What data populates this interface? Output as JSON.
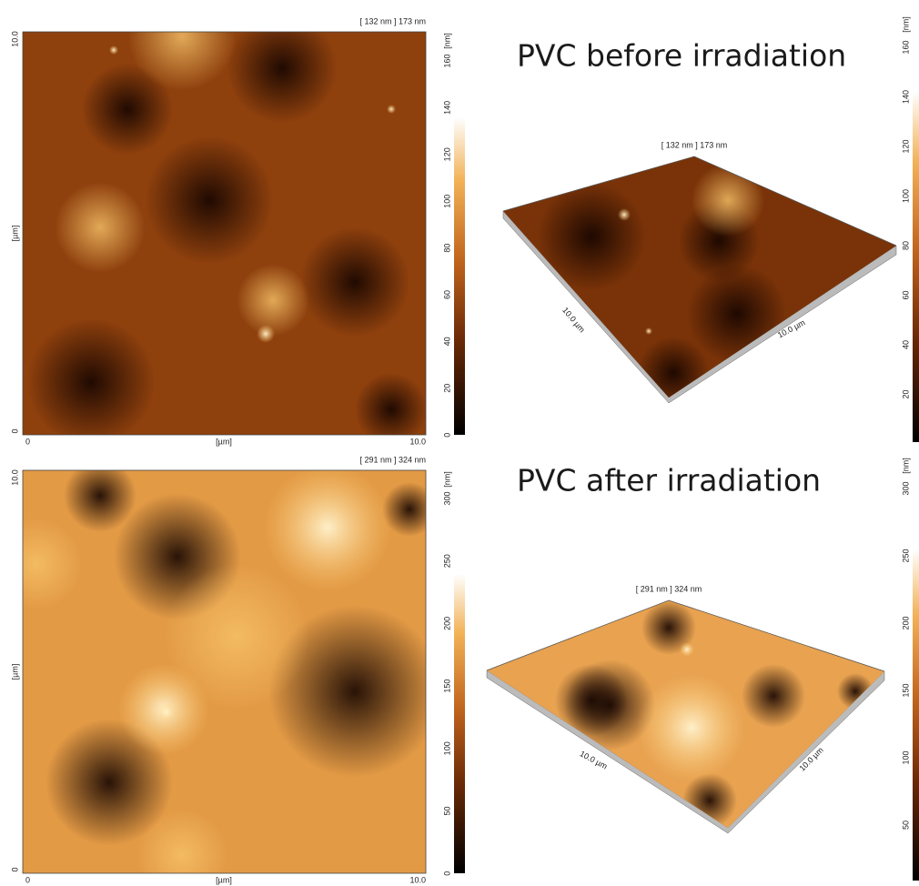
{
  "panels": [
    {
      "title": "PVC before irradiation",
      "map": {
        "header": "[ 132 nm ] 173 nm",
        "y_axis": {
          "top": "10.0",
          "label": "[µm]",
          "bottom": "0"
        },
        "x_axis": {
          "left": "0",
          "label": "[µm]",
          "right": "10.0"
        }
      },
      "colorbar": {
        "unit": "[nm]",
        "ticks": [
          "160",
          "140",
          "120",
          "100",
          "80",
          "60",
          "40",
          "20",
          "0"
        ]
      },
      "view_3d": {
        "header": "[ 132 nm ] 173 nm",
        "axis_left": "10.0 µm",
        "axis_right": "10.0 µm"
      },
      "colorbar_right": {
        "unit": "[nm]",
        "ticks": [
          "160",
          "140",
          "120",
          "100",
          "80",
          "60",
          "40",
          "20"
        ]
      }
    },
    {
      "title": "PVC after irradiation",
      "map": {
        "header": "[ 291 nm ] 324 nm",
        "y_axis": {
          "top": "10.0",
          "label": "[µm]",
          "bottom": "0"
        },
        "x_axis": {
          "left": "0",
          "label": "[µm]",
          "right": "10.0"
        }
      },
      "colorbar": {
        "unit": "[nm]",
        "ticks": [
          "300",
          "250",
          "200",
          "150",
          "100",
          "50",
          "0"
        ]
      },
      "view_3d": {
        "header": "[ 291 nm ] 324 nm",
        "axis_left": "10.0 µm",
        "axis_right": "10.0 µm"
      },
      "colorbar_right": {
        "unit": "[nm]",
        "ticks": [
          "300",
          "250",
          "200",
          "150",
          "100",
          "50"
        ]
      }
    }
  ]
}
